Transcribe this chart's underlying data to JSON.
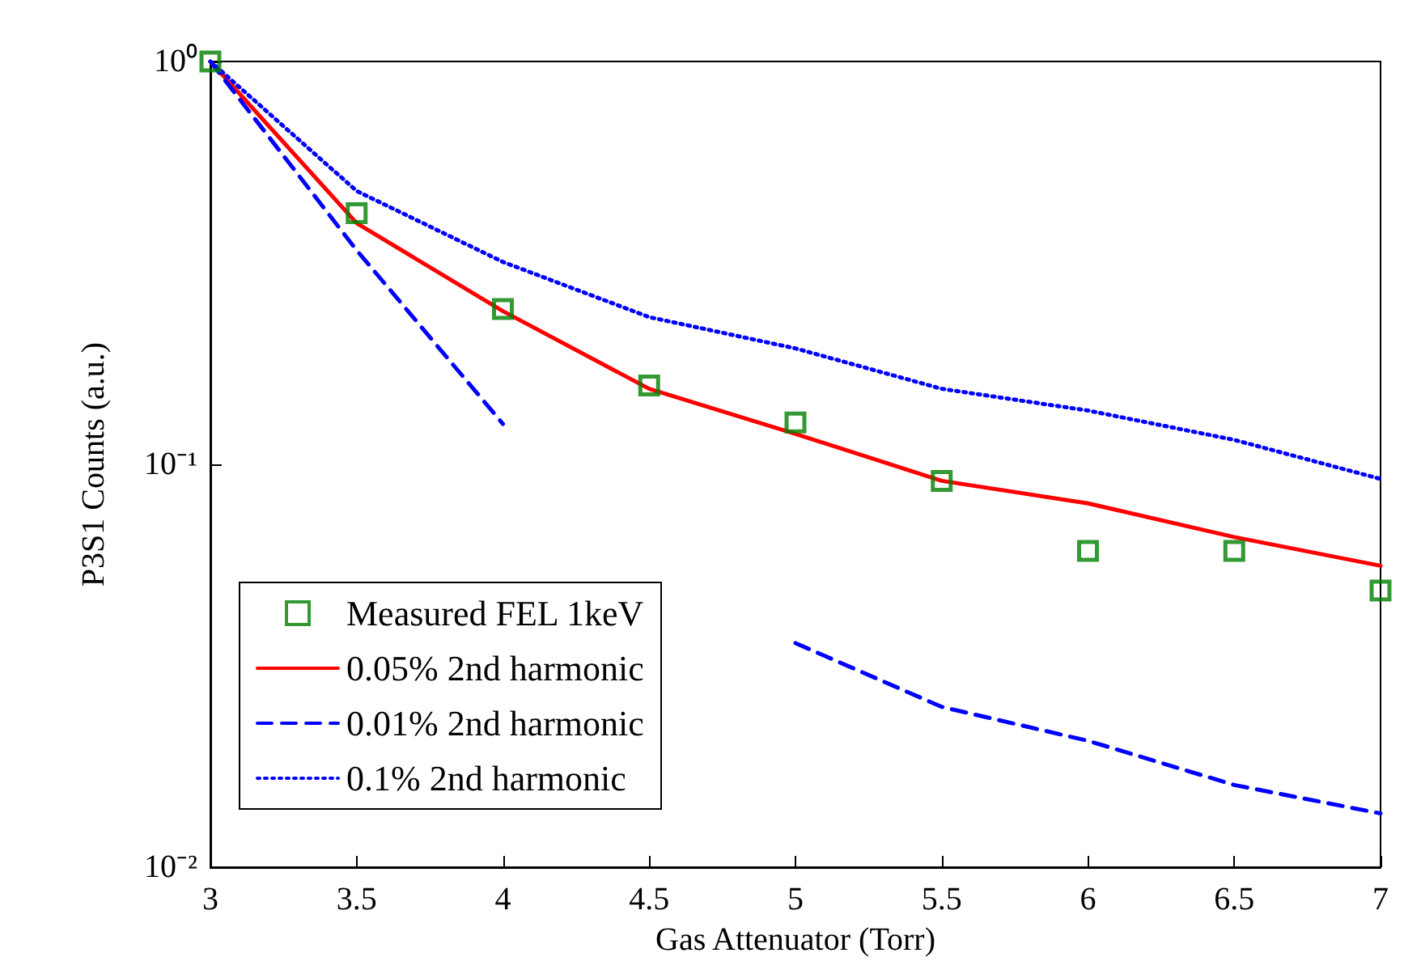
{
  "chart_data": {
    "type": "line",
    "xlabel": "Gas Attenuator (Torr)",
    "ylabel": "P3S1 Counts (a.u.)",
    "x": [
      3,
      3.5,
      4,
      4.5,
      5,
      5.5,
      6,
      6.5,
      7
    ],
    "series": [
      {
        "name": "Measured FEL 1keV",
        "type": "scatter",
        "color": "#008000",
        "marker": "square",
        "values": [
          1.0,
          0.42,
          0.243,
          0.157,
          0.127,
          0.091,
          0.061,
          0.061,
          0.0486
        ]
      },
      {
        "name": "0.05% 2nd harmonic",
        "color": "#ff0000",
        "line_style": "solid",
        "values": [
          1.0,
          0.397,
          0.24,
          0.154,
          0.119,
          0.091,
          0.08,
          0.066,
          0.056
        ]
      },
      {
        "name": "0.01% 2nd harmonic",
        "color": "#0000ff",
        "line_style": "dashed",
        "values": [
          1.0,
          0.34,
          0.126,
          null,
          0.036,
          0.025,
          0.0206,
          0.016,
          0.0136
        ]
      },
      {
        "name": "0.1% 2nd harmonic",
        "color": "#0000ff",
        "line_style": "dotted",
        "values": [
          1.0,
          0.477,
          0.318,
          0.232,
          0.194,
          0.154,
          0.136,
          0.115,
          0.092
        ]
      }
    ],
    "xlim": [
      3,
      7
    ],
    "xticks": [
      3,
      3.5,
      4,
      4.5,
      5,
      5.5,
      6,
      6.5,
      7
    ],
    "ylim": [
      0.01,
      1
    ],
    "yticks": [
      {
        "value": 0.01,
        "label": "10⁻²"
      },
      {
        "value": 0.1,
        "label": "10⁻¹"
      },
      {
        "value": 1,
        "label": "10⁰"
      }
    ],
    "log": "y",
    "grid": false,
    "legend": "bottom left",
    "marker": "none"
  }
}
